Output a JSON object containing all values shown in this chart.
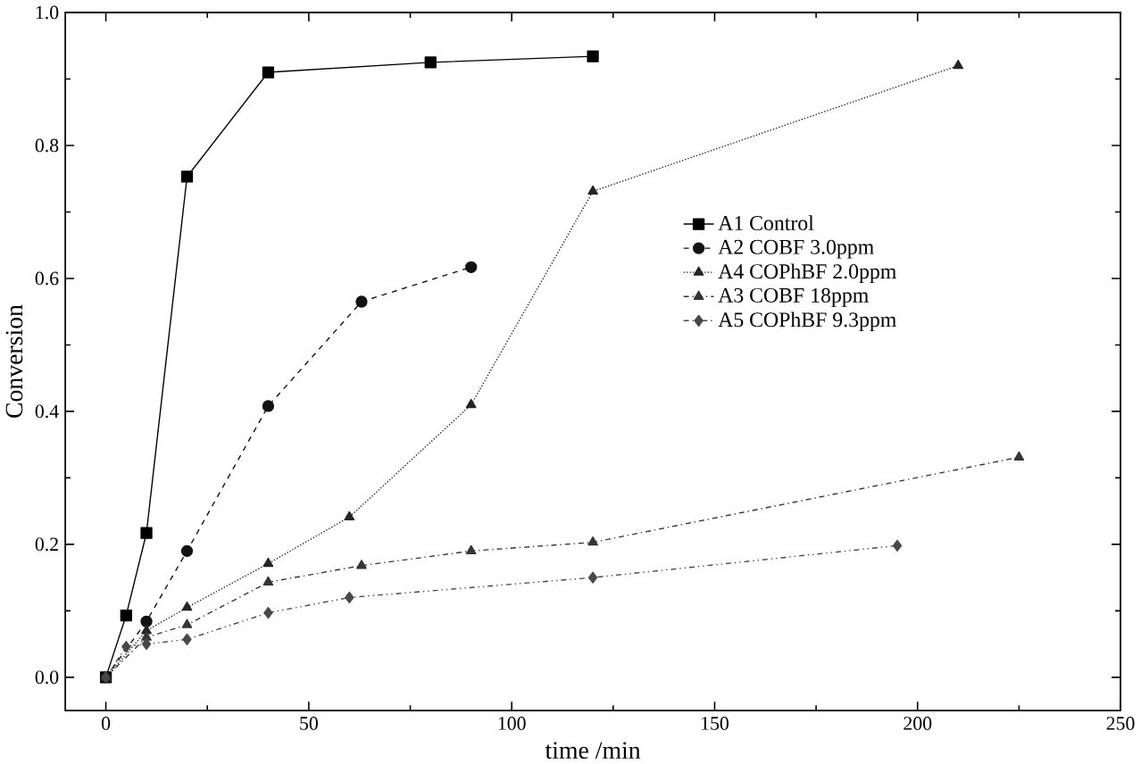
{
  "chart_data": {
    "type": "line",
    "xlabel": "time /min",
    "ylabel": "Conversion",
    "xlim": [
      -10,
      250
    ],
    "ylim": [
      -0.05,
      1.0
    ],
    "xticks": [
      0,
      50,
      100,
      150,
      200,
      250
    ],
    "yticks": [
      {
        "value": 0,
        "label": "0.0"
      },
      {
        "value": 0.2,
        "label": "0.2"
      },
      {
        "value": 0.4,
        "label": "0.4"
      },
      {
        "value": 0.6,
        "label": "0.6"
      },
      {
        "value": 0.8,
        "label": "0.8"
      },
      {
        "value": 1.0,
        "label": "1.0"
      }
    ],
    "grid": false,
    "legend": "right",
    "series": [
      {
        "name": "A1 Control",
        "color": "#000000",
        "marker": "square",
        "line_style": "solid",
        "x": [
          0,
          5,
          10,
          20,
          40,
          80,
          120
        ],
        "values": [
          0,
          0.093,
          0.217,
          0.753,
          0.91,
          0.925,
          0.934
        ]
      },
      {
        "name": "A2 COBF 3.0ppm",
        "color": "#121212",
        "marker": "circle",
        "line_style": "dashed",
        "x": [
          0,
          5,
          10,
          20,
          40,
          63,
          90
        ],
        "values": [
          0,
          null,
          0.084,
          0.19,
          0.408,
          0.565,
          0.617
        ]
      },
      {
        "name": "A4 COPhBF 2.0ppm",
        "color": "#242424",
        "marker": "triangle",
        "line_style": "dotted",
        "x": [
          0,
          5,
          10,
          20,
          40,
          60,
          90,
          120,
          210
        ],
        "values": [
          0,
          null,
          0.07,
          0.105,
          0.171,
          0.241,
          0.41,
          0.731,
          0.92
        ]
      },
      {
        "name": "A3 COBF 18ppm",
        "color": "#363636",
        "marker": "triangle",
        "line_style": "dashdot",
        "x": [
          0,
          5,
          10,
          20,
          40,
          63,
          90,
          120,
          225
        ],
        "values": [
          0,
          null,
          0.06,
          0.079,
          0.143,
          0.168,
          0.19,
          0.203,
          0.331
        ]
      },
      {
        "name": "A5 COPhBF 9.3ppm",
        "color": "#484848",
        "marker": "diamond",
        "line_style": "dashdotdot",
        "x": [
          0,
          5,
          10,
          20,
          40,
          60,
          120,
          195
        ],
        "values": [
          0,
          0.046,
          0.05,
          0.057,
          0.097,
          0.12,
          0.15,
          0.198
        ]
      }
    ]
  }
}
